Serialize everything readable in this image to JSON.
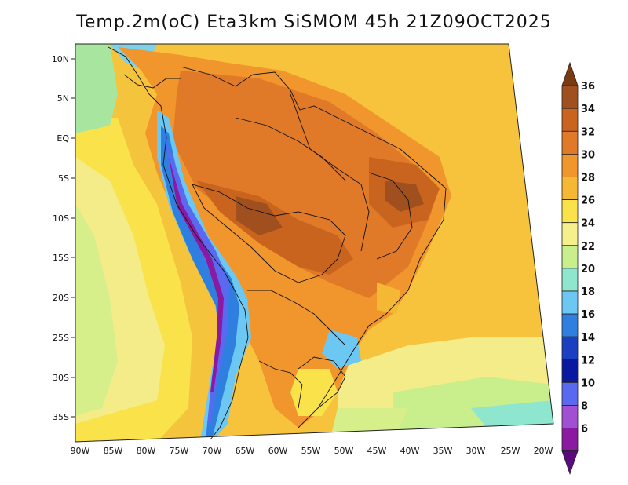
{
  "title": "Temp.2m(oC) Eta3km SiSMOM 45h 21Z09OCT2025",
  "map": {
    "lat_labels": [
      "10N",
      "5N",
      "EQ",
      "5S",
      "10S",
      "15S",
      "20S",
      "25S",
      "30S",
      "35S"
    ],
    "lon_labels": [
      "90W",
      "85W",
      "80W",
      "75W",
      "70W",
      "65W",
      "60W",
      "55W",
      "50W",
      "45W",
      "40W",
      "35W",
      "30W",
      "25W",
      "20W"
    ]
  },
  "colorbar": {
    "labels": [
      "36",
      "34",
      "32",
      "30",
      "28",
      "26",
      "24",
      "22",
      "20",
      "18",
      "16",
      "14",
      "12",
      "10",
      "8",
      "6"
    ],
    "colors": [
      "#7a3a12",
      "#a0501e",
      "#c8641e",
      "#e07a28",
      "#f0962c",
      "#f5b834",
      "#fae34a",
      "#f5f08c",
      "#c9ef8c",
      "#8ee6cf",
      "#6cc7f2",
      "#2f7fe0",
      "#1a3fc0",
      "#0a1aa0",
      "#5a6af0",
      "#a050d0",
      "#8a1aa0",
      "#5a0a7a"
    ],
    "colors_note": "from top arrow to bottom arrow"
  }
}
